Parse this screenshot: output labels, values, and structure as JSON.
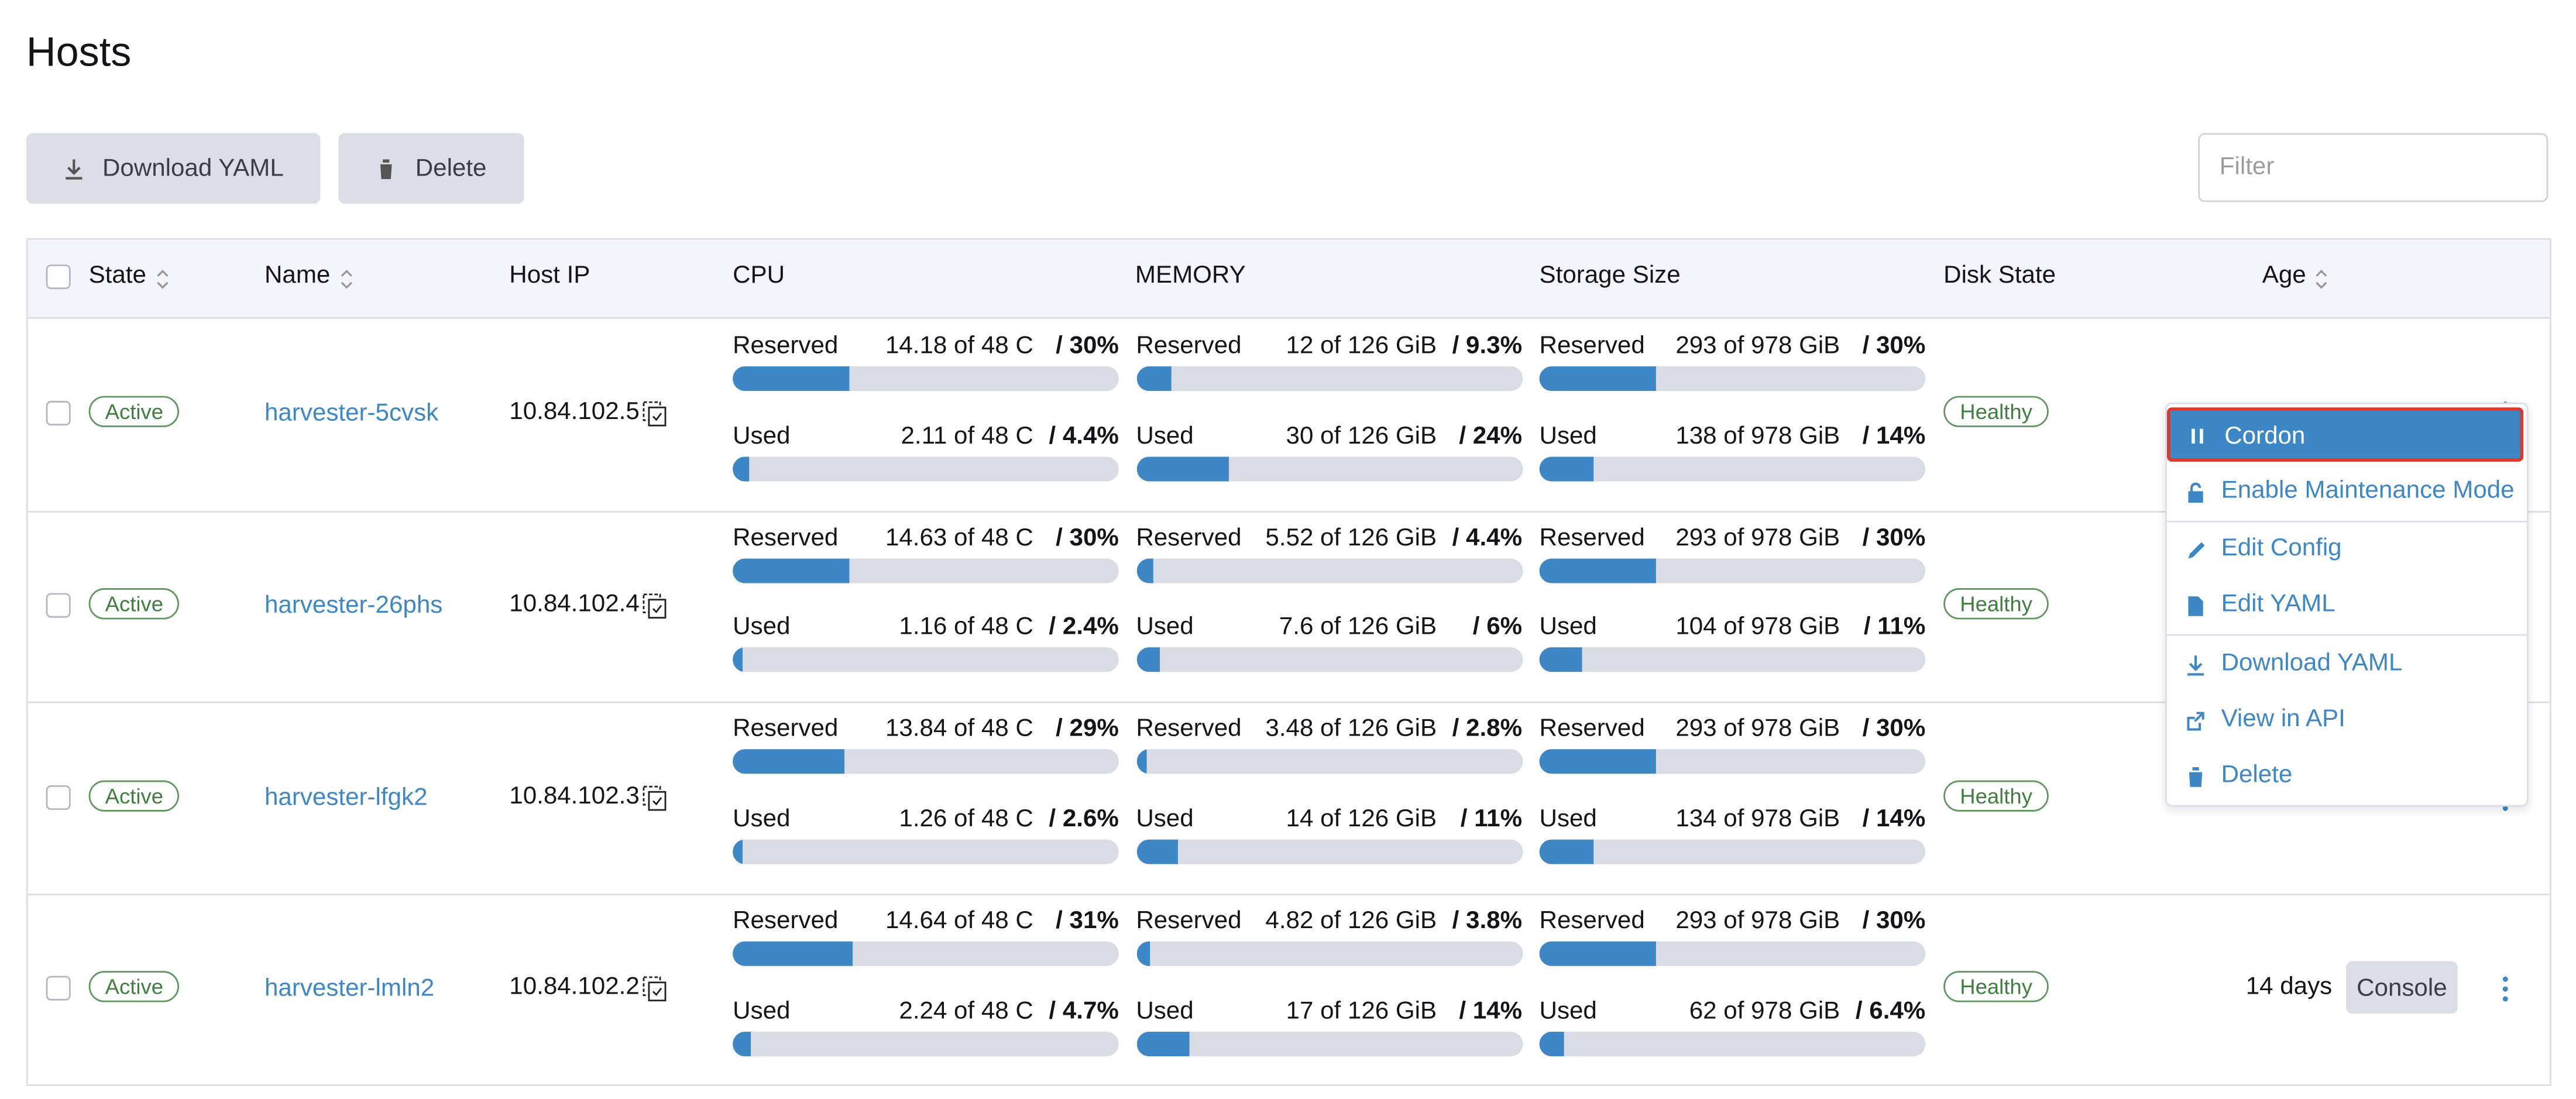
{
  "page": {
    "title": "Hosts"
  },
  "toolbar": {
    "buttons": [
      "Download YAML",
      "Delete"
    ],
    "filter_placeholder": "Filter"
  },
  "table": {
    "columns": [
      "State",
      "Name",
      "Host IP",
      "CPU",
      "MEMORY",
      "Storage Size",
      "Disk State",
      "Age"
    ],
    "rows": [
      {
        "state": "Active",
        "name": "harvester-5cvsk",
        "host_ip": "10.84.102.5",
        "disk_state": "Healthy",
        "cpu": [
          {
            "label": "Reserved",
            "amount": "14.18 of 48 C",
            "percent_label": "/ 30%",
            "percent": 30
          },
          {
            "label": "Used",
            "amount": "2.11 of 48 C",
            "percent_label": "/ 4.4%",
            "percent": 4.4
          }
        ],
        "memory": [
          {
            "label": "Reserved",
            "amount": "12 of 126 GiB",
            "percent_label": "/ 9.3%",
            "percent": 9.3
          },
          {
            "label": "Used",
            "amount": "30 of 126 GiB",
            "percent_label": "/ 24%",
            "percent": 24
          }
        ],
        "storage": [
          {
            "label": "Reserved",
            "amount": "293 of 978 GiB",
            "percent_label": "/ 30%",
            "percent": 30
          },
          {
            "label": "Used",
            "amount": "138 of 978 GiB",
            "percent_label": "/ 14%",
            "percent": 14
          }
        ]
      },
      {
        "state": "Active",
        "name": "harvester-26phs",
        "host_ip": "10.84.102.4",
        "disk_state": "Healthy",
        "cpu": [
          {
            "label": "Reserved",
            "amount": "14.63 of 48 C",
            "percent_label": "/ 30%",
            "percent": 30
          },
          {
            "label": "Used",
            "amount": "1.16 of 48 C",
            "percent_label": "/ 2.4%",
            "percent": 2.4
          }
        ],
        "memory": [
          {
            "label": "Reserved",
            "amount": "5.52 of 126 GiB",
            "percent_label": "/ 4.4%",
            "percent": 4.4
          },
          {
            "label": "Used",
            "amount": "7.6 of 126 GiB",
            "percent_label": "/ 6%",
            "percent": 6
          }
        ],
        "storage": [
          {
            "label": "Reserved",
            "amount": "293 of 978 GiB",
            "percent_label": "/ 30%",
            "percent": 30
          },
          {
            "label": "Used",
            "amount": "104 of 978 GiB",
            "percent_label": "/ 11%",
            "percent": 11
          }
        ]
      },
      {
        "state": "Active",
        "name": "harvester-lfgk2",
        "host_ip": "10.84.102.3",
        "disk_state": "Healthy",
        "cpu": [
          {
            "label": "Reserved",
            "amount": "13.84 of 48 C",
            "percent_label": "/ 29%",
            "percent": 29
          },
          {
            "label": "Used",
            "amount": "1.26 of 48 C",
            "percent_label": "/ 2.6%",
            "percent": 2.6
          }
        ],
        "memory": [
          {
            "label": "Reserved",
            "amount": "3.48 of 126 GiB",
            "percent_label": "/ 2.8%",
            "percent": 2.8
          },
          {
            "label": "Used",
            "amount": "14 of 126 GiB",
            "percent_label": "/ 11%",
            "percent": 11
          }
        ],
        "storage": [
          {
            "label": "Reserved",
            "amount": "293 of 978 GiB",
            "percent_label": "/ 30%",
            "percent": 30
          },
          {
            "label": "Used",
            "amount": "134 of 978 GiB",
            "percent_label": "/ 14%",
            "percent": 14
          }
        ]
      },
      {
        "state": "Active",
        "name": "harvester-lmln2",
        "host_ip": "10.84.102.2",
        "disk_state": "Healthy",
        "age": "14 days",
        "action": "Console",
        "cpu": [
          {
            "label": "Reserved",
            "amount": "14.64 of 48 C",
            "percent_label": "/ 31%",
            "percent": 31
          },
          {
            "label": "Used",
            "amount": "2.24 of 48 C",
            "percent_label": "/ 4.7%",
            "percent": 4.7
          }
        ],
        "memory": [
          {
            "label": "Reserved",
            "amount": "4.82 of 126 GiB",
            "percent_label": "/ 3.8%",
            "percent": 3.8
          },
          {
            "label": "Used",
            "amount": "17 of 126 GiB",
            "percent_label": "/ 14%",
            "percent": 14
          }
        ],
        "storage": [
          {
            "label": "Reserved",
            "amount": "293 of 978 GiB",
            "percent_label": "/ 30%",
            "percent": 30
          },
          {
            "label": "Used",
            "amount": "62 of 978 GiB",
            "percent_label": "/ 6.4%",
            "percent": 6.4
          }
        ]
      }
    ]
  },
  "menu": {
    "items": [
      "Cordon",
      "Enable Maintenance Mode",
      "Edit Config",
      "Edit YAML",
      "Download YAML",
      "View in API",
      "Delete"
    ]
  }
}
